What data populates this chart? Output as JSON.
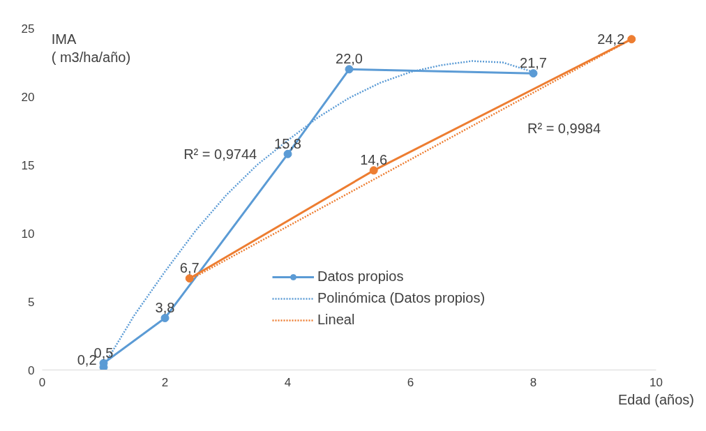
{
  "chart_data": {
    "type": "line",
    "ylabel": "IMA\n( m3/ha/año)",
    "xlabel": "Edad (años)",
    "xlim": [
      0,
      10
    ],
    "xticks": [
      0,
      2,
      4,
      6,
      8,
      10
    ],
    "ylim": [
      0,
      25
    ],
    "yticks": [
      0,
      5,
      10,
      15,
      20,
      25
    ],
    "grid": false,
    "legend": "right",
    "marker": "circle",
    "line_style": "solid",
    "series": [
      {
        "name": "Datos propios",
        "color": "#5b9bd5",
        "x": [
          1,
          1,
          2,
          4,
          5,
          8
        ],
        "values": [
          0.2,
          0.5,
          3.8,
          15.8,
          22.0,
          21.7
        ],
        "value_labels": [
          "0,2",
          "0,5",
          "3,8",
          "15,8",
          "22,0",
          "21,7"
        ]
      },
      {
        "color": "#ed7d31",
        "x": [
          2.4,
          5.4,
          9.6
        ],
        "values": [
          6.7,
          14.6,
          24.2
        ],
        "value_labels": [
          "6,7",
          "14,6",
          "24,2"
        ]
      },
      {
        "name": "Polinómica (Datos propios)",
        "color": "#5b9bd5",
        "marker": "none",
        "line_style": "dotted",
        "x": [
          1,
          1.5,
          2,
          2.5,
          3,
          3.5,
          4,
          4.5,
          5,
          5.5,
          6,
          6.5,
          7,
          7.5,
          8
        ],
        "values": [
          0.3,
          4,
          7.2,
          10.2,
          12.8,
          15,
          16.8,
          18.5,
          19.9,
          21,
          21.8,
          22.3,
          22.6,
          22.5,
          21.8
        ]
      },
      {
        "name": "Lineal",
        "color": "#ed7d31",
        "marker": "none",
        "line_style": "dotted",
        "x": [
          2.4,
          9.6
        ],
        "values": [
          6.6,
          24.2
        ]
      }
    ],
    "annotations": [
      "R² = 0,9744",
      "R² = 0,9984"
    ]
  }
}
